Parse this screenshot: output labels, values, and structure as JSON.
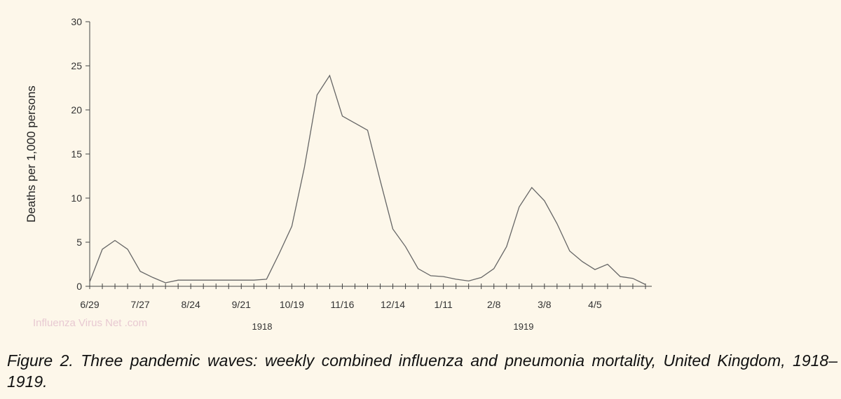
{
  "caption": "Figure 2. Three pandemic waves: weekly combined influenza and pneumonia mortality, United Kingdom, 1918–1919.",
  "watermark": "Influenza Virus Net .com",
  "chart_data": {
    "type": "line",
    "title": "",
    "xlabel": "",
    "ylabel": "Deaths per 1,000 persons",
    "ylim": [
      0,
      30
    ],
    "yticks": [
      0,
      5,
      10,
      15,
      20,
      25,
      30
    ],
    "x_tick_labels": [
      "6/29",
      "7/27",
      "8/24",
      "9/21",
      "10/19",
      "11/16",
      "12/14",
      "1/11",
      "2/8",
      "3/8",
      "4/5"
    ],
    "year_labels": [
      "1918",
      "1919"
    ],
    "x": [
      "6/29",
      "7/6",
      "7/13",
      "7/20",
      "7/27",
      "8/3",
      "8/10",
      "8/17",
      "8/24",
      "8/31",
      "9/7",
      "9/14",
      "9/21",
      "9/28",
      "10/5",
      "10/12",
      "10/19",
      "10/26",
      "11/2",
      "11/9",
      "11/16",
      "11/23",
      "11/30",
      "12/7",
      "12/14",
      "12/21",
      "12/28",
      "1/4",
      "1/11",
      "1/18",
      "1/25",
      "2/1",
      "2/8",
      "2/15",
      "2/22",
      "3/1",
      "3/8",
      "3/15",
      "3/22",
      "3/29",
      "4/5",
      "4/12",
      "4/19",
      "4/26",
      "5/3"
    ],
    "series": [
      {
        "values": [
          0.5,
          4.2,
          5.2,
          4.2,
          1.7,
          1.0,
          0.4,
          0.7,
          0.7,
          0.7,
          0.7,
          0.7,
          0.7,
          0.7,
          0.8,
          3.7,
          6.8,
          13.5,
          21.7,
          23.9,
          19.3,
          18.5,
          17.7,
          12.0,
          6.5,
          4.5,
          2.0,
          1.2,
          1.1,
          0.8,
          0.6,
          1.0,
          2.0,
          4.5,
          9.0,
          11.2,
          9.7,
          7.1,
          4.0,
          2.8,
          1.9,
          2.5,
          1.1,
          0.9,
          0.2
        ]
      }
    ]
  }
}
